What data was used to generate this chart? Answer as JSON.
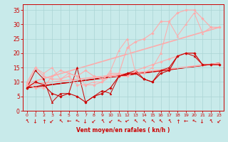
{
  "xlabel": "Vent moyen/en rafales ( kn/h )",
  "xlim": [
    -0.5,
    23.5
  ],
  "ylim": [
    0,
    37
  ],
  "yticks": [
    0,
    5,
    10,
    15,
    20,
    25,
    30,
    35
  ],
  "xticks": [
    0,
    1,
    2,
    3,
    4,
    5,
    6,
    7,
    8,
    9,
    10,
    11,
    12,
    13,
    14,
    15,
    16,
    17,
    18,
    19,
    20,
    21,
    22,
    23
  ],
  "bg_color": "#c8eaea",
  "grid_color": "#aad4d4",
  "tick_color": "#cc0000",
  "label_color": "#cc0000",
  "series": [
    {
      "x": [
        0,
        1,
        2,
        3,
        4,
        5,
        6,
        7,
        8,
        9,
        10,
        11,
        12,
        13,
        14,
        15,
        16,
        17,
        18,
        19,
        20,
        21,
        22,
        23
      ],
      "y": [
        8,
        10,
        9,
        6,
        5,
        6,
        5,
        3,
        5,
        6,
        8,
        12,
        13,
        13,
        11,
        10,
        13,
        14,
        19,
        20,
        20,
        16,
        16,
        16
      ],
      "color": "#cc0000",
      "linewidth": 0.8,
      "marker": "D",
      "markersize": 1.8,
      "zorder": 5
    },
    {
      "x": [
        0,
        1,
        2,
        3,
        4,
        5,
        6,
        7,
        8,
        9,
        10,
        11,
        12,
        13,
        14,
        15,
        16,
        17,
        18,
        19,
        20,
        21,
        22,
        23
      ],
      "y": [
        8,
        14,
        11,
        3,
        6,
        6,
        15,
        3,
        5,
        7,
        6,
        12,
        13,
        14,
        11,
        10,
        14,
        15,
        19,
        20,
        19,
        16,
        16,
        16
      ],
      "color": "#cc0000",
      "linewidth": 0.7,
      "marker": "^",
      "markersize": 2.0,
      "zorder": 4
    },
    {
      "x": [
        0,
        1,
        2,
        3,
        4,
        5,
        6,
        7,
        8,
        9,
        10,
        11,
        12,
        13,
        14,
        15,
        16,
        17,
        18,
        19,
        20,
        21,
        22,
        23
      ],
      "y": [
        9,
        15,
        12,
        11,
        11,
        12,
        9,
        9,
        9,
        10,
        12,
        12,
        12,
        14,
        15,
        16,
        17,
        18,
        19,
        20,
        20,
        16,
        16,
        16
      ],
      "color": "#ffaaaa",
      "linewidth": 0.8,
      "marker": "D",
      "markersize": 1.8,
      "zorder": 4
    },
    {
      "x": [
        0,
        1,
        2,
        3,
        4,
        5,
        6,
        7,
        8,
        9,
        10,
        11,
        12,
        13,
        14,
        15,
        16,
        17,
        18,
        19,
        20,
        21,
        22,
        23
      ],
      "y": [
        9,
        8,
        8,
        12,
        14,
        13,
        12,
        14,
        12,
        11,
        13,
        13,
        22,
        24,
        25,
        27,
        31,
        31,
        34,
        35,
        35,
        32,
        29,
        29
      ],
      "color": "#ffaaaa",
      "linewidth": 0.8,
      "marker": "D",
      "markersize": 1.8,
      "zorder": 4
    },
    {
      "x": [
        0,
        1,
        2,
        3,
        4,
        5,
        6,
        7,
        8,
        9,
        10,
        11,
        12,
        13,
        14,
        15,
        16,
        17,
        18,
        19,
        20,
        21,
        22,
        23
      ],
      "y": [
        10,
        15,
        13,
        15,
        11,
        13,
        12,
        9,
        10,
        10,
        14,
        21,
        25,
        13,
        13,
        15,
        20,
        31,
        26,
        30,
        34,
        27,
        29,
        29
      ],
      "color": "#ffaaaa",
      "linewidth": 0.7,
      "marker": "^",
      "markersize": 2.0,
      "zorder": 4
    }
  ],
  "straight_lines": [
    {
      "x0": 0,
      "y0": 8.0,
      "x1": 23,
      "y1": 16.5,
      "color": "#cc0000",
      "linewidth": 1.2
    },
    {
      "x0": 0,
      "y0": 8.0,
      "x1": 23,
      "y1": 16.5,
      "color": "#cc0000",
      "linewidth": 0.8
    },
    {
      "x0": 0,
      "y0": 9.0,
      "x1": 23,
      "y1": 16.5,
      "color": "#ffaaaa",
      "linewidth": 1.2
    },
    {
      "x0": 0,
      "y0": 9.5,
      "x1": 23,
      "y1": 29.0,
      "color": "#ffaaaa",
      "linewidth": 1.2
    }
  ],
  "arrow_symbol": "←",
  "arrow_color": "#cc0000",
  "arrow_fontsize": 5.5
}
